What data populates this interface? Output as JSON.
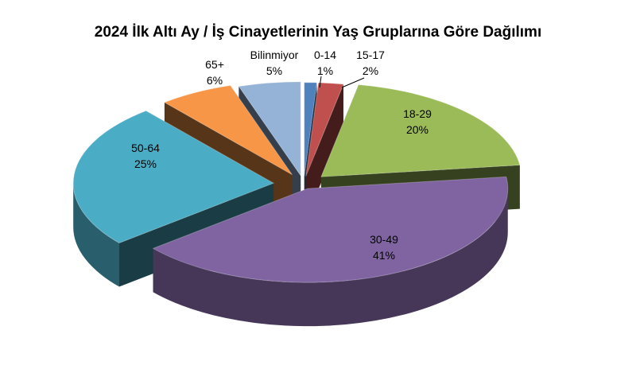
{
  "chart_data": {
    "type": "pie",
    "title": "2024 İlk Altı Ay / İş Cinayetlerinin Yaş Gruplarına Göre Dağılımı",
    "legend": "none",
    "slices": [
      {
        "label": "0-14",
        "value": 1,
        "value_label": "1%",
        "color": "#4f81bd"
      },
      {
        "label": "15-17",
        "value": 2,
        "value_label": "2%",
        "color": "#c0504d"
      },
      {
        "label": "18-29",
        "value": 20,
        "value_label": "20%",
        "color": "#9bbb59"
      },
      {
        "label": "30-49",
        "value": 41,
        "value_label": "41%",
        "color": "#8064a2"
      },
      {
        "label": "50-64",
        "value": 25,
        "value_label": "25%",
        "color": "#4bacc6"
      },
      {
        "label": "65+",
        "value": 6,
        "value_label": "6%",
        "color": "#f79646"
      },
      {
        "label": "Bilinmiyor",
        "value": 5,
        "value_label": "5%",
        "color": "#95b3d7"
      }
    ]
  }
}
